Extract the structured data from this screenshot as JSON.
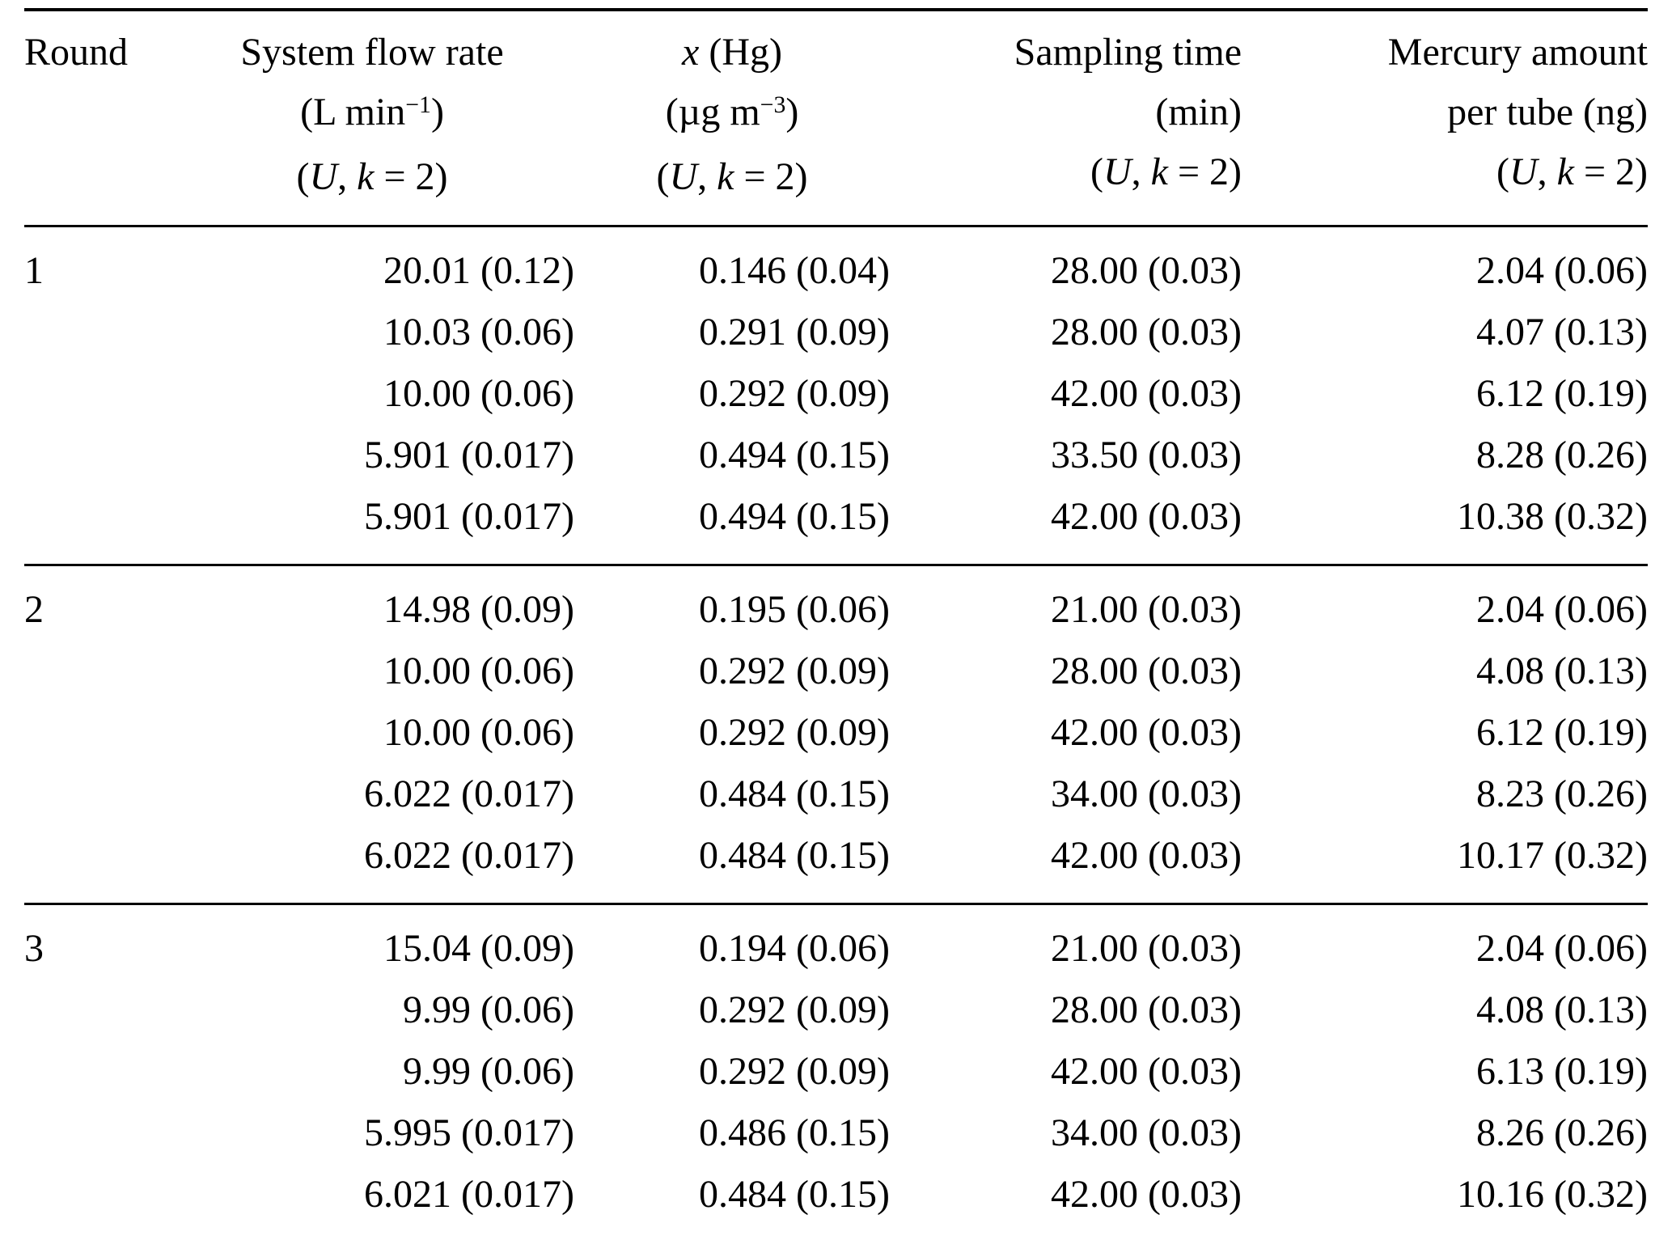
{
  "page": {
    "background": "#ffffff",
    "text_color": "#000000",
    "rule_color": "#000000"
  },
  "table": {
    "header": {
      "round": [
        {
          "t": "Round"
        }
      ],
      "uncertainty_note": [
        {
          "t": "("
        },
        {
          "t": "U",
          "s": "it"
        },
        {
          "t": ", "
        },
        {
          "t": "k",
          "s": "it"
        },
        {
          "t": " = 2)"
        }
      ],
      "flow": {
        "line1": [
          {
            "t": "System flow rate"
          }
        ],
        "line2": [
          {
            "t": "(L min"
          },
          {
            "t": "−1",
            "s": "sup"
          },
          {
            "t": ")"
          }
        ]
      },
      "xhg": {
        "line1": [
          {
            "t": "x",
            "s": "it"
          },
          {
            "t": " (Hg)"
          }
        ],
        "line2": [
          {
            "t": "(µg m"
          },
          {
            "t": "−3",
            "s": "sup"
          },
          {
            "t": ")"
          }
        ]
      },
      "time": {
        "line1": [
          {
            "t": "Sampling time"
          }
        ],
        "line2": [
          {
            "t": "(min)"
          }
        ]
      },
      "mercury": {
        "line1": [
          {
            "t": "Mercury amount"
          }
        ],
        "line2": [
          {
            "t": "per tube (ng)"
          }
        ]
      }
    },
    "groups": [
      {
        "round": "1",
        "rows": [
          [
            "20.01 (0.12)",
            "0.146 (0.04)",
            "28.00 (0.03)",
            "2.04 (0.06)"
          ],
          [
            "10.03 (0.06)",
            "0.291 (0.09)",
            "28.00 (0.03)",
            "4.07 (0.13)"
          ],
          [
            "10.00 (0.06)",
            "0.292 (0.09)",
            "42.00 (0.03)",
            "6.12 (0.19)"
          ],
          [
            "5.901 (0.017)",
            "0.494 (0.15)",
            "33.50 (0.03)",
            "8.28 (0.26)"
          ],
          [
            "5.901 (0.017)",
            "0.494 (0.15)",
            "42.00 (0.03)",
            "10.38 (0.32)"
          ]
        ]
      },
      {
        "round": "2",
        "rows": [
          [
            "14.98 (0.09)",
            "0.195 (0.06)",
            "21.00 (0.03)",
            "2.04 (0.06)"
          ],
          [
            "10.00 (0.06)",
            "0.292 (0.09)",
            "28.00 (0.03)",
            "4.08 (0.13)"
          ],
          [
            "10.00 (0.06)",
            "0.292 (0.09)",
            "42.00 (0.03)",
            "6.12 (0.19)"
          ],
          [
            "6.022 (0.017)",
            "0.484 (0.15)",
            "34.00 (0.03)",
            "8.23 (0.26)"
          ],
          [
            "6.022 (0.017)",
            "0.484 (0.15)",
            "42.00 (0.03)",
            "10.17 (0.32)"
          ]
        ]
      },
      {
        "round": "3",
        "rows": [
          [
            "15.04 (0.09)",
            "0.194 (0.06)",
            "21.00 (0.03)",
            "2.04 (0.06)"
          ],
          [
            "9.99 (0.06)",
            "0.292 (0.09)",
            "28.00 (0.03)",
            "4.08 (0.13)"
          ],
          [
            "9.99 (0.06)",
            "0.292 (0.09)",
            "42.00 (0.03)",
            "6.13 (0.19)"
          ],
          [
            "5.995 (0.017)",
            "0.486 (0.15)",
            "34.00 (0.03)",
            "8.26 (0.26)"
          ],
          [
            "6.021 (0.017)",
            "0.484 (0.15)",
            "42.00 (0.03)",
            "10.16 (0.32)"
          ]
        ]
      }
    ]
  }
}
